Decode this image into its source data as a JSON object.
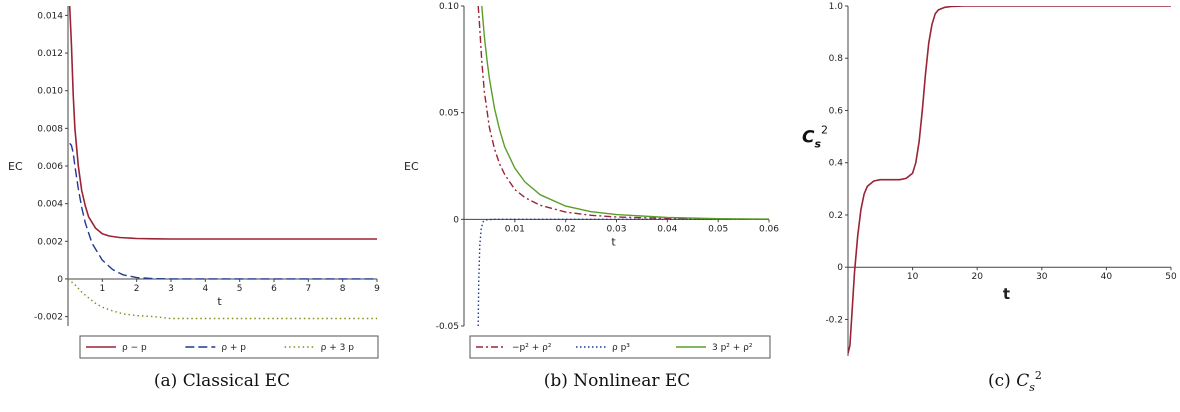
{
  "charts": [
    {
      "caption": "(a) Classical EC",
      "ylabel": "EC",
      "xlabel": "t",
      "xlim": [
        0,
        9
      ],
      "ylim": [
        -0.0025,
        0.0145
      ],
      "xticks": [
        1,
        2,
        3,
        4,
        5,
        6,
        7,
        8,
        9
      ],
      "yticks": [
        -0.002,
        0,
        0.002,
        0.004,
        0.006,
        0.008,
        0.01,
        0.012,
        0.014
      ],
      "ytick_labels": [
        "-0.002",
        "0",
        "0.002",
        "0.004",
        "0.006",
        "0.008",
        "0.010",
        "0.012",
        "0.014"
      ],
      "series": [
        {
          "name": "ρ − p",
          "color": "#9b2335",
          "dash": "",
          "width": 1.6,
          "x": [
            0.05,
            0.1,
            0.15,
            0.2,
            0.3,
            0.4,
            0.5,
            0.6,
            0.8,
            1.0,
            1.2,
            1.5,
            2.0,
            2.5,
            3.0,
            4.0,
            5.0,
            6.0,
            7.0,
            8.0,
            9.0
          ],
          "y": [
            0.0145,
            0.0125,
            0.0098,
            0.008,
            0.006,
            0.0047,
            0.0039,
            0.0033,
            0.0027,
            0.0024,
            0.00228,
            0.0022,
            0.00215,
            0.00213,
            0.00212,
            0.00212,
            0.00212,
            0.00212,
            0.00212,
            0.00212,
            0.00212
          ]
        },
        {
          "name": "ρ + p",
          "color": "#1f3a93",
          "dash": "9,4",
          "width": 1.4,
          "x": [
            0.05,
            0.1,
            0.15,
            0.2,
            0.3,
            0.4,
            0.5,
            0.7,
            1.0,
            1.3,
            1.6,
            2.0,
            2.5,
            3.0,
            4.0,
            5.0,
            9.0
          ],
          "y": [
            0.0072,
            0.0071,
            0.0067,
            0.006,
            0.0048,
            0.0038,
            0.003,
            0.0019,
            0.001,
            0.0005,
            0.00022,
            7e-05,
            2e-05,
            0.0,
            0.0,
            0.0,
            0.0
          ]
        },
        {
          "name": "ρ + 3 p",
          "color": "#8a8a1a",
          "dash": "1.5,3",
          "width": 1.4,
          "x": [
            0.0,
            0.2,
            0.4,
            0.6,
            0.8,
            1.0,
            1.3,
            1.6,
            2.0,
            2.5,
            3.0,
            4.0,
            5.0,
            6.0,
            7.0,
            8.0,
            9.0
          ],
          "y": [
            0.0,
            -0.0003,
            -0.0007,
            -0.001,
            -0.0013,
            -0.0015,
            -0.0017,
            -0.00185,
            -0.00195,
            -0.002,
            -0.0021,
            -0.0021,
            -0.0021,
            -0.0021,
            -0.0021,
            -0.0021,
            -0.0021
          ]
        }
      ]
    },
    {
      "caption": "(b) Nonlinear EC",
      "ylabel": "EC",
      "xlabel": "t",
      "xlim": [
        0,
        0.06
      ],
      "ylim": [
        -0.05,
        0.1
      ],
      "xticks": [
        0.01,
        0.02,
        0.03,
        0.04,
        0.05,
        0.06
      ],
      "xtick_labels": [
        "0.01",
        "0.02",
        "0.03",
        "0.04",
        "0.05",
        "0.06"
      ],
      "yticks": [
        -0.05,
        0,
        0.05,
        0.1
      ],
      "ytick_labels": [
        "-0.05",
        "0",
        "0.05",
        "0.10"
      ],
      "series": [
        {
          "name": "−p² + ρ²",
          "color": "#9b2335",
          "dash": "7,3,2,3",
          "width": 1.4,
          "x": [
            0.0028,
            0.003,
            0.0035,
            0.004,
            0.005,
            0.006,
            0.007,
            0.008,
            0.01,
            0.012,
            0.015,
            0.02,
            0.025,
            0.03,
            0.04,
            0.05,
            0.06
          ],
          "y": [
            0.1,
            0.093,
            0.074,
            0.06,
            0.043,
            0.033,
            0.026,
            0.021,
            0.014,
            0.0102,
            0.0066,
            0.0034,
            0.0019,
            0.0011,
            0.0004,
            0.0001,
            0.0
          ]
        },
        {
          "name": "ρ p³",
          "color": "#1f3a93",
          "dash": "1.5,2.5",
          "width": 1.4,
          "x": [
            0.0028,
            0.0029,
            0.0031,
            0.0034,
            0.0038,
            0.0045,
            0.006,
            0.06
          ],
          "y": [
            -0.05,
            -0.03,
            -0.012,
            -0.004,
            -0.001,
            -0.0002,
            0.0,
            0.0
          ]
        },
        {
          "name": "3 p² + ρ²",
          "color": "#5a9e2a",
          "dash": "",
          "width": 1.4,
          "x": [
            0.0035,
            0.004,
            0.0045,
            0.005,
            0.006,
            0.007,
            0.008,
            0.01,
            0.012,
            0.015,
            0.02,
            0.025,
            0.03,
            0.04,
            0.05,
            0.06
          ],
          "y": [
            0.1,
            0.086,
            0.075,
            0.066,
            0.052,
            0.042,
            0.034,
            0.024,
            0.0175,
            0.0115,
            0.0062,
            0.0036,
            0.0022,
            0.0009,
            0.0003,
            0.0001
          ]
        }
      ]
    },
    {
      "caption": "(c) Cs²",
      "ylabel": "Cs²",
      "xlabel": "t",
      "xlim": [
        0,
        50
      ],
      "ylim": [
        -0.34,
        1.0
      ],
      "xticks": [
        10,
        20,
        30,
        40,
        50
      ],
      "yticks": [
        -0.2,
        0,
        0.2,
        0.4,
        0.6,
        0.8,
        1.0
      ],
      "ytick_labels": [
        "-0.2",
        "0",
        "0.2",
        "0.4",
        "0.6",
        "0.8",
        "1.0"
      ],
      "series": [
        {
          "name": "",
          "color": "#9b2335",
          "dash": "",
          "width": 1.6,
          "x": [
            0.0,
            0.3,
            0.6,
            1.0,
            1.5,
            2.0,
            2.5,
            3.0,
            4.0,
            5.0,
            6.0,
            7.0,
            8.0,
            9.0,
            10.0,
            10.5,
            11.0,
            11.5,
            12.0,
            12.5,
            13.0,
            13.5,
            14.0,
            15.0,
            16.0,
            18.0,
            20.0,
            30.0,
            40.0,
            50.0
          ],
          "y": [
            -0.33,
            -0.3,
            -0.18,
            -0.02,
            0.12,
            0.22,
            0.28,
            0.31,
            0.33,
            0.335,
            0.335,
            0.335,
            0.335,
            0.34,
            0.36,
            0.4,
            0.48,
            0.6,
            0.74,
            0.86,
            0.93,
            0.97,
            0.985,
            0.995,
            0.998,
            1.0,
            1.0,
            1.0,
            1.0,
            1.0
          ]
        }
      ]
    }
  ]
}
